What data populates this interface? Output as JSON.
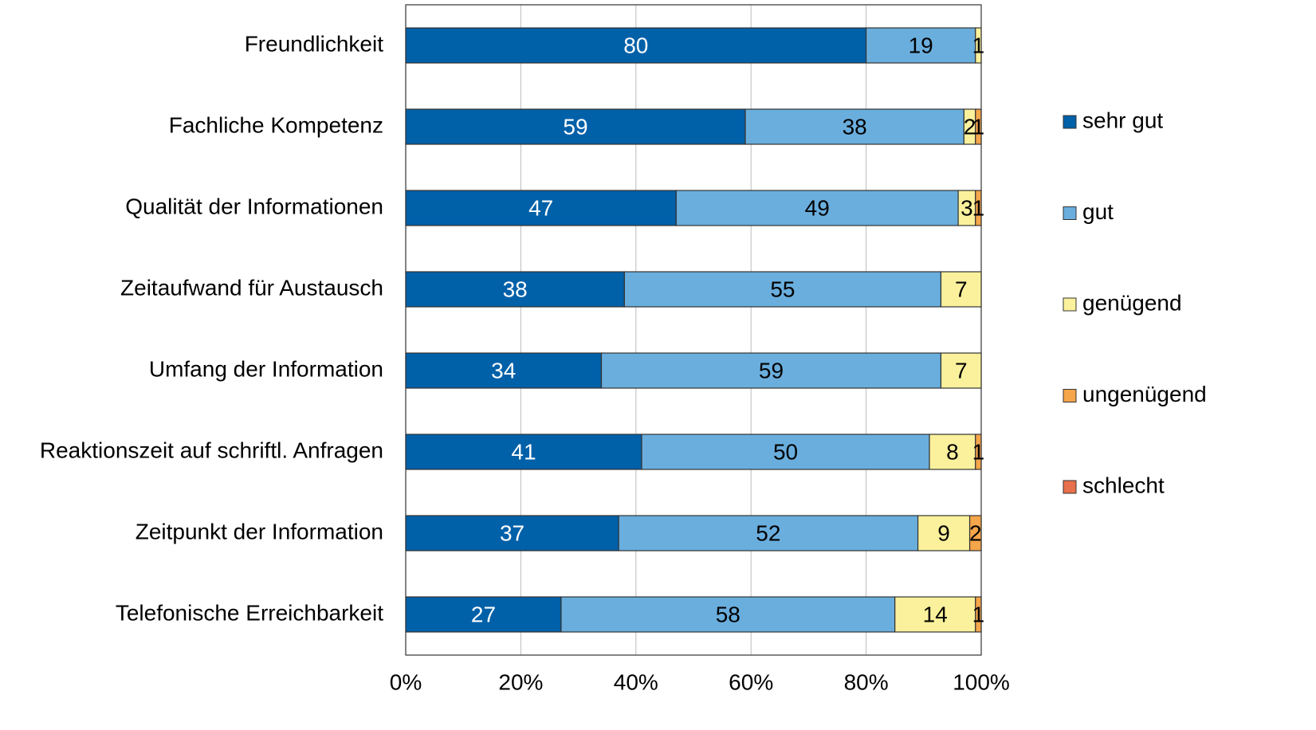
{
  "chart_data": {
    "type": "stacked_barh",
    "categories": [
      "Freundlichkeit",
      "Fachliche Kompetenz",
      "Qualität der Informationen",
      "Zeitaufwand für Austausch",
      "Umfang der Information",
      "Reaktionszeit auf schriftl. Anfragen",
      "Zeitpunkt der Information",
      "Telefonische Erreichbarkeit"
    ],
    "series": [
      {
        "name": "sehr gut",
        "color": "#0060a8",
        "values": [
          80,
          59,
          47,
          38,
          34,
          41,
          37,
          27
        ]
      },
      {
        "name": "gut",
        "color": "#6aaede",
        "values": [
          19,
          38,
          49,
          55,
          59,
          50,
          52,
          58
        ]
      },
      {
        "name": "genügend",
        "color": "#fbf19c",
        "values": [
          1,
          2,
          3,
          7,
          7,
          8,
          9,
          14
        ]
      },
      {
        "name": "ungenügend",
        "color": "#f5a54a",
        "values": [
          0,
          1,
          1,
          0,
          0,
          1,
          2,
          1
        ]
      },
      {
        "name": "schlecht",
        "color": "#e8704a",
        "values": [
          0,
          0,
          0,
          0,
          0,
          0,
          0,
          0
        ]
      }
    ],
    "xlim": [
      0,
      100
    ],
    "xticks": [
      {
        "value": 0,
        "label": "0%"
      },
      {
        "value": 20,
        "label": "20%"
      },
      {
        "value": 40,
        "label": "40%"
      },
      {
        "value": 60,
        "label": "60%"
      },
      {
        "value": 80,
        "label": "80%"
      },
      {
        "value": 100,
        "label": "100%"
      }
    ],
    "grid": true,
    "legend": "right"
  }
}
